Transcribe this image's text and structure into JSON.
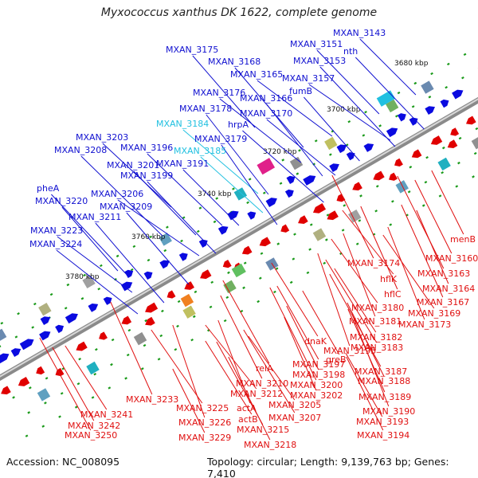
{
  "title": "Myxococcus xanthus DK 1622, complete genome",
  "footer": {
    "accession": "Accession: NC_008095",
    "summary": "Topology: circular; Length: 9,139,763 bp; Genes: 7,410"
  },
  "colors": {
    "forward_label": "#1010d0",
    "reverse_label": "#e01010",
    "highlight_label": "#20c0e0",
    "forward_gene": "#0a0ae0",
    "reverse_gene": "#e00000",
    "backbone": "#8a8a8a",
    "tick": "#1a9a1a"
  },
  "scale_labels": [
    "3680 kbp",
    "3700 kbp",
    "3720 kbp",
    "3740 kbp",
    "3760 kbp",
    "3780 kbp"
  ],
  "forward_genes": [
    "MXAN_3143",
    "MXAN_3151",
    "nth",
    "MXAN_3153",
    "MXAN_3157",
    "fumB",
    "MXAN_3175",
    "MXAN_3168",
    "MXAN_3165",
    "MXAN_3176",
    "MXAN_3166",
    "MXAN_3178",
    "MXAN_3170",
    "MXAN_3184",
    "hrpA",
    "MXAN_3179",
    "MXAN_3185",
    "MXAN_3203",
    "MXAN_3196",
    "MXAN_3208",
    "MXAN_3191",
    "MXAN_3201",
    "MXAN_3199",
    "pheA",
    "MXAN_3206",
    "MXAN_3220",
    "MXAN_3209",
    "MXAN_3211",
    "MXAN_3223",
    "MXAN_3224"
  ],
  "reverse_genes": [
    "menB",
    "MXAN_3160",
    "MXAN_3174",
    "MXAN_3163",
    "hflK",
    "MXAN_3164",
    "hflC",
    "MXAN_3167",
    "MXAN_3180",
    "MXAN_3169",
    "MXAN_3181",
    "MXAN_3173",
    "MXAN_3182",
    "dnaK",
    "MXAN_3183",
    "MXAN_3195",
    "greB",
    "MXAN_3197",
    "relA",
    "MXAN_3187",
    "MXAN_3198",
    "MXAN_3188",
    "MXAN_3210",
    "MXAN_3200",
    "MXAN_3212",
    "MXAN_3202",
    "MXAN_3189",
    "MXAN_3233",
    "MXAN_3205",
    "MXAN_3225",
    "actA",
    "MXAN_3190",
    "MXAN_3241",
    "actB",
    "MXAN_3207",
    "MXAN_3226",
    "MXAN_3193",
    "MXAN_3242",
    "MXAN_3215",
    "MXAN_3250",
    "MXAN_3229",
    "MXAN_3194",
    "MXAN_3218"
  ]
}
